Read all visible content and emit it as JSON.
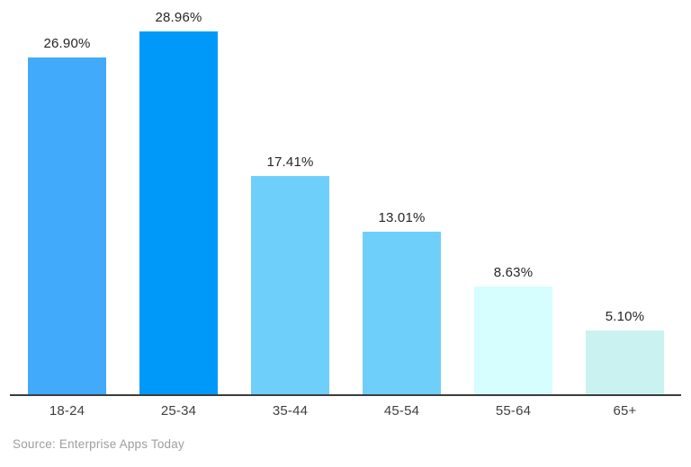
{
  "chart_data": {
    "type": "bar",
    "categories": [
      "18-24",
      "25-34",
      "35-44",
      "45-54",
      "55-64",
      "65+"
    ],
    "values": [
      26.9,
      28.96,
      17.41,
      13.01,
      8.63,
      5.1
    ],
    "data_labels": [
      "26.90%",
      "28.96%",
      "17.41%",
      "13.01%",
      "8.63%",
      "5.10%"
    ],
    "bar_colors": [
      "#41AAFA",
      "#0099FA",
      "#6FCFFB",
      "#6FCFFB",
      "#D6FDFF",
      "#C9F2F0"
    ],
    "title": "",
    "xlabel": "",
    "ylabel": "",
    "ylim": [
      0,
      31.5
    ],
    "grid": false,
    "legend_position": "none"
  },
  "footer": {
    "source_text": "Source: Enterprise Apps Today"
  },
  "colors": {
    "background": "#FFFFFF",
    "axis_line": "#3C3C3C",
    "data_label_text": "#262626",
    "tick_label_text": "#3F3F3F",
    "source_text": "#9E9E9E"
  }
}
